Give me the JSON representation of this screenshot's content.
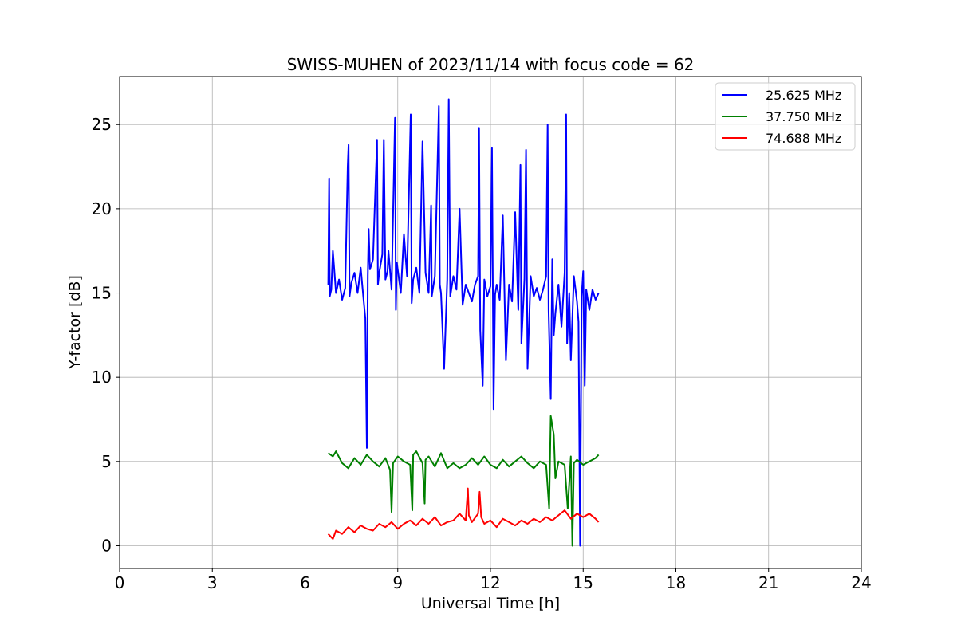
{
  "chart_data": {
    "type": "line",
    "title": "SWISS-MUHEN of 2023/11/14 with focus code = 62",
    "xlabel": "Universal Time [h]",
    "ylabel": "Y-factor [dB]",
    "xlim": [
      0,
      24
    ],
    "ylim": [
      -1.35,
      27.85
    ],
    "x_ticks": [
      0,
      3,
      6,
      9,
      12,
      15,
      18,
      21,
      24
    ],
    "y_ticks": [
      0,
      5,
      10,
      15,
      20,
      25
    ],
    "grid": true,
    "legend_position": "top-right",
    "series": [
      {
        "name": "25.625 MHz",
        "color": "#0000ff",
        "x": [
          6.75,
          6.78,
          6.8,
          6.85,
          6.9,
          7.0,
          7.1,
          7.2,
          7.3,
          7.38,
          7.41,
          7.44,
          7.5,
          7.6,
          7.7,
          7.8,
          7.9,
          7.95,
          8.0,
          8.03,
          8.06,
          8.1,
          8.2,
          8.33,
          8.36,
          8.4,
          8.5,
          8.55,
          8.6,
          8.67,
          8.7,
          8.8,
          8.91,
          8.94,
          8.97,
          9.1,
          9.2,
          9.3,
          9.42,
          9.45,
          9.5,
          9.6,
          9.7,
          9.8,
          9.9,
          10.0,
          10.08,
          10.1,
          10.2,
          10.33,
          10.36,
          10.4,
          10.5,
          10.6,
          10.65,
          10.7,
          10.8,
          10.9,
          11.0,
          11.1,
          11.2,
          11.3,
          11.4,
          11.5,
          11.6,
          11.63,
          11.67,
          11.75,
          11.8,
          11.9,
          12.0,
          12.05,
          12.1,
          12.15,
          12.2,
          12.3,
          12.4,
          12.5,
          12.6,
          12.7,
          12.8,
          12.9,
          12.97,
          13.0,
          13.1,
          13.15,
          13.2,
          13.3,
          13.4,
          13.5,
          13.6,
          13.7,
          13.8,
          13.85,
          13.88,
          13.95,
          14.0,
          14.05,
          14.1,
          14.2,
          14.3,
          14.4,
          14.45,
          14.48,
          14.55,
          14.6,
          14.7,
          14.8,
          14.85,
          14.9,
          14.95,
          15.0,
          15.05,
          15.1,
          15.2,
          15.3,
          15.4,
          15.5
        ],
        "values": [
          15.5,
          21.8,
          14.8,
          15.2,
          17.5,
          15.0,
          15.8,
          14.6,
          15.3,
          22.5,
          23.8,
          14.8,
          15.6,
          16.2,
          15.0,
          16.5,
          14.5,
          13.5,
          5.8,
          16.0,
          18.8,
          16.4,
          17.0,
          24.1,
          15.5,
          16.2,
          17.3,
          24.1,
          15.8,
          16.3,
          17.5,
          15.2,
          25.4,
          14.0,
          16.8,
          15.0,
          18.5,
          16.0,
          25.6,
          14.4,
          15.8,
          16.5,
          15.0,
          24.0,
          16.2,
          15.0,
          20.2,
          14.8,
          16.0,
          26.1,
          15.5,
          15.0,
          10.5,
          15.8,
          26.5,
          14.8,
          16.0,
          15.2,
          20.0,
          14.3,
          15.5,
          15.0,
          14.5,
          15.5,
          16.0,
          24.8,
          12.8,
          9.5,
          15.8,
          14.8,
          15.4,
          23.6,
          8.1,
          14.9,
          15.5,
          14.6,
          19.6,
          11.0,
          15.5,
          14.5,
          19.8,
          14.0,
          22.6,
          12.0,
          15.8,
          23.5,
          10.5,
          16.0,
          14.8,
          15.3,
          14.6,
          15.2,
          16.0,
          25.0,
          14.0,
          8.7,
          17.0,
          12.5,
          13.8,
          15.5,
          13.0,
          16.2,
          25.6,
          12.0,
          15.0,
          11.0,
          16.0,
          14.5,
          13.3,
          0.0,
          14.8,
          16.3,
          9.5,
          15.2,
          14.0,
          15.2,
          14.6,
          15.0
        ]
      },
      {
        "name": "37.750 MHz",
        "color": "#008000",
        "x": [
          6.75,
          6.9,
          7.0,
          7.2,
          7.4,
          7.6,
          7.8,
          8.0,
          8.2,
          8.4,
          8.6,
          8.75,
          8.8,
          8.85,
          9.0,
          9.2,
          9.4,
          9.47,
          9.5,
          9.6,
          9.8,
          9.87,
          9.9,
          10.0,
          10.2,
          10.4,
          10.6,
          10.8,
          11.0,
          11.2,
          11.4,
          11.6,
          11.8,
          12.0,
          12.2,
          12.4,
          12.6,
          12.8,
          13.0,
          13.2,
          13.4,
          13.6,
          13.8,
          13.9,
          13.95,
          14.05,
          14.1,
          14.2,
          14.4,
          14.5,
          14.6,
          14.65,
          14.7,
          14.8,
          15.0,
          15.2,
          15.4,
          15.5
        ],
        "values": [
          5.5,
          5.3,
          5.6,
          4.9,
          4.6,
          5.2,
          4.8,
          5.4,
          5.0,
          4.7,
          5.2,
          4.5,
          2.0,
          4.9,
          5.3,
          5.0,
          4.8,
          2.1,
          5.4,
          5.6,
          4.9,
          2.5,
          5.1,
          5.3,
          4.7,
          5.5,
          4.6,
          4.9,
          4.6,
          4.8,
          5.2,
          4.8,
          5.3,
          4.8,
          4.6,
          5.1,
          4.7,
          5.0,
          5.3,
          4.9,
          4.6,
          5.0,
          4.8,
          2.2,
          7.7,
          6.6,
          4.0,
          5.0,
          4.8,
          2.2,
          5.3,
          0.0,
          4.9,
          5.1,
          4.8,
          5.0,
          5.2,
          5.4
        ]
      },
      {
        "name": "74.688 MHz",
        "color": "#ff0000",
        "x": [
          6.75,
          6.9,
          7.0,
          7.2,
          7.4,
          7.6,
          7.8,
          8.0,
          8.2,
          8.4,
          8.6,
          8.8,
          9.0,
          9.2,
          9.4,
          9.6,
          9.8,
          10.0,
          10.2,
          10.4,
          10.6,
          10.8,
          11.0,
          11.2,
          11.27,
          11.3,
          11.4,
          11.6,
          11.65,
          11.7,
          11.8,
          12.0,
          12.2,
          12.4,
          12.6,
          12.8,
          13.0,
          13.2,
          13.4,
          13.6,
          13.8,
          14.0,
          14.2,
          14.4,
          14.6,
          14.8,
          15.0,
          15.2,
          15.4,
          15.5
        ],
        "values": [
          0.7,
          0.4,
          0.9,
          0.7,
          1.1,
          0.8,
          1.2,
          1.0,
          0.9,
          1.3,
          1.1,
          1.4,
          1.0,
          1.3,
          1.5,
          1.2,
          1.6,
          1.3,
          1.7,
          1.2,
          1.4,
          1.5,
          1.9,
          1.5,
          3.4,
          1.8,
          1.4,
          1.9,
          3.2,
          1.7,
          1.3,
          1.5,
          1.1,
          1.6,
          1.4,
          1.2,
          1.5,
          1.3,
          1.6,
          1.4,
          1.7,
          1.5,
          1.8,
          2.1,
          1.6,
          1.9,
          1.7,
          1.9,
          1.6,
          1.4
        ]
      }
    ]
  }
}
